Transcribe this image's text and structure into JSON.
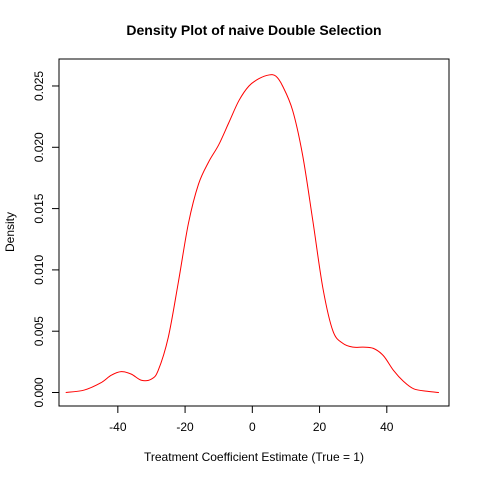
{
  "chart_data": {
    "type": "line",
    "title": "Density Plot of naive Double Selection",
    "xlabel": "Treatment Coefficient Estimate (True = 1)",
    "ylabel": "Density",
    "xlim": [
      -57.5,
      58.5
    ],
    "ylim": [
      -0.0011,
      0.0272
    ],
    "x_ticks": [
      -40,
      -20,
      0,
      20,
      40
    ],
    "x_tick_labels": [
      "-40",
      "-20",
      "0",
      "20",
      "40"
    ],
    "y_ticks": [
      0.0,
      0.005,
      0.01,
      0.015,
      0.02,
      0.025
    ],
    "y_tick_labels": [
      "0.000",
      "0.005",
      "0.010",
      "0.015",
      "0.020",
      "0.025"
    ],
    "grid": false,
    "series": [
      {
        "color": "#ff0000",
        "x": [
          -55.5,
          -50,
          -45,
          -42,
          -39,
          -36,
          -33,
          -30,
          -28,
          -25,
          -22,
          -19,
          -16,
          -13,
          -10,
          -7,
          -4,
          -1,
          2,
          5,
          7,
          9,
          12,
          15,
          18,
          21,
          24,
          27,
          30,
          33,
          36,
          39,
          42,
          45,
          48,
          52,
          55.5
        ],
        "y": [
          0.0,
          0.0002,
          0.0008,
          0.0014,
          0.0017,
          0.0015,
          0.001,
          0.0011,
          0.0018,
          0.0045,
          0.009,
          0.0138,
          0.017,
          0.0188,
          0.0202,
          0.022,
          0.0238,
          0.025,
          0.0256,
          0.0259,
          0.0258,
          0.025,
          0.023,
          0.0193,
          0.014,
          0.0085,
          0.005,
          0.004,
          0.0037,
          0.0037,
          0.0036,
          0.003,
          0.0018,
          0.0009,
          0.0003,
          0.0001,
          0.0
        ]
      }
    ]
  }
}
